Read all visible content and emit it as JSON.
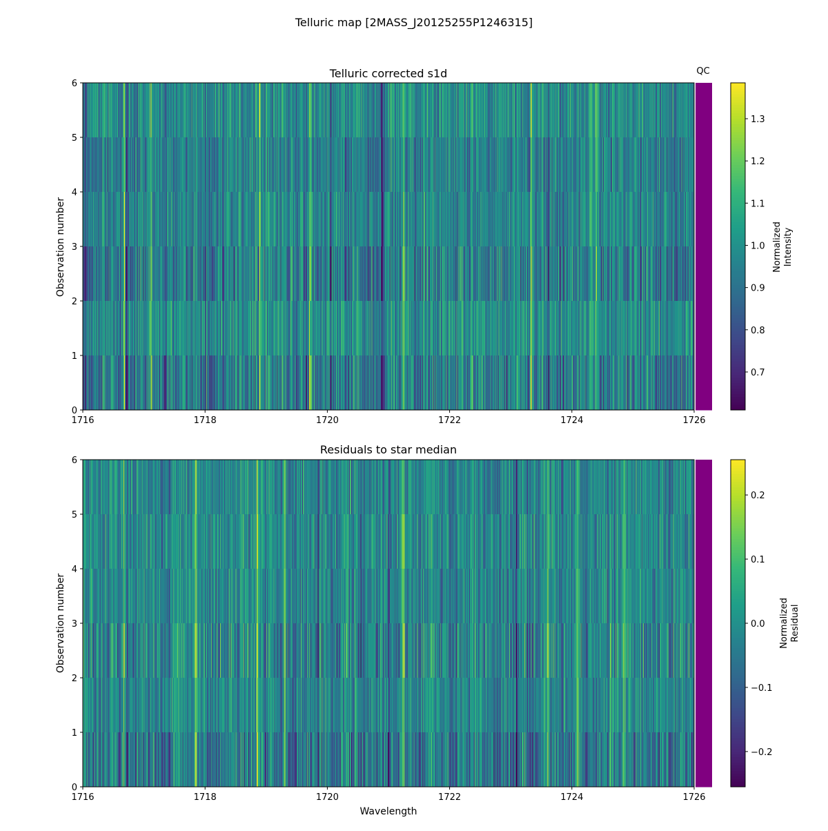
{
  "suptitle": "Telluric map [2MASS_J20125255P1246315]",
  "colors": {
    "qc_fail": "#800080",
    "viridis": [
      "#440154",
      "#482878",
      "#3e4989",
      "#31688e",
      "#26828e",
      "#1f9e89",
      "#35b779",
      "#6ece58",
      "#b5de2b",
      "#fde725"
    ]
  },
  "chart_data": [
    {
      "type": "heatmap",
      "title": "Telluric corrected s1d",
      "xlabel": "",
      "ylabel": "Observation number",
      "xlim": [
        1716,
        1726
      ],
      "ylim": [
        0,
        6
      ],
      "xticks": [
        1716,
        1718,
        1720,
        1722,
        1724,
        1726
      ],
      "yticks": [
        0,
        1,
        2,
        3,
        4,
        5,
        6
      ],
      "n_observations": 6,
      "n_wavelength_bins": 900,
      "qc_label": "QC",
      "qc_status": [
        "fail",
        "fail",
        "fail",
        "fail",
        "fail",
        "fail"
      ],
      "colorbar": {
        "label_line1": "Normalized",
        "label_line2": "Intensity",
        "vmin": 0.61,
        "vmax": 1.385,
        "ticks": [
          0.7,
          0.8,
          0.9,
          1.0,
          1.1,
          1.2,
          1.3
        ],
        "tick_labels": [
          "0.7",
          "0.8",
          "0.9",
          "1.0",
          "1.1",
          "1.2",
          "1.3"
        ]
      },
      "bright_columns": [
        1716.68,
        1717.12,
        1718.9,
        1719.72,
        1721.25,
        1723.34,
        1724.32,
        1724.4,
        1724.96
      ],
      "dark_columns": [
        1716.05,
        1716.72,
        1720.05,
        1720.9,
        1723.62
      ],
      "seed": 11
    },
    {
      "type": "heatmap",
      "title": "Residuals to star median",
      "xlabel": "Wavelength",
      "ylabel": "Observation number",
      "xlim": [
        1716,
        1726
      ],
      "ylim": [
        0,
        6
      ],
      "xticks": [
        1716,
        1718,
        1720,
        1722,
        1724,
        1726
      ],
      "yticks": [
        0,
        1,
        2,
        3,
        4,
        5,
        6
      ],
      "n_observations": 6,
      "n_wavelength_bins": 900,
      "qc_status": [
        "fail",
        "fail",
        "fail",
        "fail",
        "fail",
        "fail"
      ],
      "colorbar": {
        "label_line1": "Normalized",
        "label_line2": "Residual",
        "vmin": -0.255,
        "vmax": 0.255,
        "ticks": [
          -0.2,
          -0.1,
          0.0,
          0.1,
          0.2
        ],
        "tick_labels": [
          "−0.2",
          "−0.1",
          "0.0",
          "0.1",
          "0.2"
        ]
      },
      "bright_columns": [
        1716.68,
        1717.85,
        1718.85,
        1719.3,
        1721.25,
        1723.6,
        1724.1,
        1724.85
      ],
      "dark_columns": [
        1716.72,
        1719.85,
        1720.55,
        1721.0,
        1723.1
      ],
      "seed": 29
    }
  ]
}
